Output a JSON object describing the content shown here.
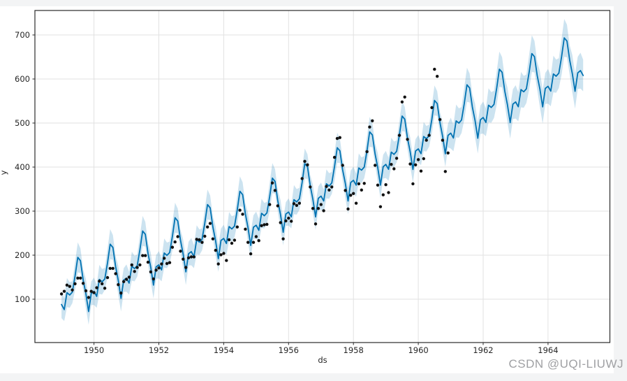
{
  "page": {
    "watermark": "CSDN @UQI-LIUWJ",
    "background_color": "#f3f4f5",
    "figure_background": "#ffffff"
  },
  "chart_data": {
    "type": "line",
    "description": "Prophet-style forecast plot of monthly airline passengers: black observed points, blue forecast line, light-blue uncertainty band",
    "title": "",
    "xlabel": "ds",
    "ylabel": "y",
    "grid": true,
    "legend": "none",
    "xlim": [
      1948.17,
      1965.91
    ],
    "ylim": [
      0,
      755
    ],
    "x_ticks": [
      1950,
      1952,
      1954,
      1956,
      1958,
      1960,
      1962,
      1964
    ],
    "y_ticks": [
      100,
      200,
      300,
      400,
      500,
      600,
      700
    ],
    "colors": {
      "forecast_line": "#0072B2",
      "uncertainty_band": "rgba(0,114,178,0.2)",
      "observed_points": "#111111",
      "gridline": "#e2e2e2",
      "spine": "#2b2b2b",
      "tick_label": "#262626"
    },
    "x_encoding": {
      "unit": "decimal_year",
      "start_year": 1949,
      "start_month": 1,
      "step_months": 1
    },
    "series": [
      {
        "name": "observed",
        "style": "scatter",
        "marker_radius": 2.2,
        "n_points": 144,
        "values": [
          112,
          118,
          132,
          129,
          121,
          135,
          148,
          148,
          136,
          119,
          104,
          118,
          115,
          126,
          141,
          135,
          125,
          149,
          170,
          170,
          158,
          133,
          114,
          140,
          145,
          150,
          178,
          163,
          172,
          178,
          199,
          199,
          184,
          162,
          146,
          166,
          171,
          180,
          193,
          181,
          183,
          218,
          230,
          242,
          209,
          191,
          172,
          194,
          196,
          196,
          236,
          235,
          229,
          243,
          264,
          272,
          237,
          211,
          180,
          201,
          204,
          188,
          235,
          227,
          234,
          264,
          302,
          293,
          259,
          229,
          203,
          229,
          242,
          233,
          267,
          269,
          270,
          315,
          364,
          347,
          312,
          274,
          237,
          278,
          284,
          277,
          317,
          313,
          318,
          374,
          413,
          405,
          355,
          306,
          271,
          306,
          315,
          301,
          356,
          348,
          355,
          422,
          465,
          467,
          404,
          347,
          305,
          336,
          340,
          318,
          362,
          348,
          363,
          435,
          491,
          505,
          404,
          359,
          310,
          337,
          360,
          342,
          406,
          396,
          420,
          472,
          548,
          559,
          463,
          407,
          362,
          405,
          417,
          391,
          419,
          461,
          472,
          535,
          622,
          606,
          508,
          461,
          390,
          432
        ]
      },
      {
        "name": "forecast_yhat",
        "style": "line",
        "n_points": 194,
        "values": [
          88,
          76.5,
          115,
          109.5,
          116,
          152.5,
          195,
          187.5,
          144,
          112.5,
          72,
          113.5,
          118,
          106.5,
          145,
          139.5,
          146,
          182.5,
          225,
          217.5,
          174,
          142.5,
          102,
          143.5,
          148,
          136.5,
          175,
          169.5,
          176,
          212.5,
          255,
          247.5,
          204,
          172.5,
          132,
          173.5,
          178,
          166.5,
          205,
          199.5,
          206,
          242.5,
          285,
          277.5,
          234,
          202.5,
          162,
          203.5,
          208,
          196.5,
          235,
          229.5,
          236,
          272.5,
          315,
          307.5,
          264,
          232.5,
          192,
          233.5,
          238,
          226.5,
          265,
          259.5,
          266,
          302.5,
          345,
          337.5,
          294,
          262.5,
          222,
          263.5,
          268,
          256.5,
          295,
          289.5,
          296,
          332.5,
          375,
          367.5,
          324,
          292.5,
          252,
          293.5,
          298,
          287,
          326,
          321,
          328,
          365,
          408,
          401,
          358,
          327,
          287,
          329,
          334,
          323,
          362,
          357,
          364,
          401,
          444,
          437,
          394,
          363,
          323,
          365,
          370,
          359,
          398,
          393,
          400,
          437,
          480,
          473,
          430,
          399,
          359,
          401,
          406,
          395,
          433.9,
          428.9,
          435.8,
          472.8,
          515.8,
          508.7,
          465.7,
          434.6,
          394.6,
          436.5,
          441.5,
          430.5,
          469.4,
          464.4,
          471.3,
          508.3,
          551.3,
          544.2,
          501.2,
          470.1,
          430.1,
          472,
          477,
          466,
          504.9,
          499.9,
          506.8,
          543.8,
          586.8,
          579.7,
          536.7,
          505.6,
          465.6,
          507.5,
          512.5,
          501.5,
          540.4,
          535.4,
          542.3,
          579.3,
          622.3,
          615.2,
          572.2,
          541.1,
          501.1,
          543,
          548,
          537,
          575.9,
          570.9,
          577.8,
          614.8,
          657.8,
          650.7,
          607.7,
          576.6,
          536.6,
          578.5,
          583.5,
          572.5,
          611.4,
          606.4,
          613.3,
          650.3,
          693.3,
          686.2,
          643.2,
          612.1,
          572.1,
          614,
          619,
          608
        ]
      },
      {
        "name": "uncertainty_band",
        "style": "band",
        "history_points": 144,
        "halfwidth_history": 29,
        "halfwidth_forecast_start": 33,
        "halfwidth_growth_per_month": 0.12,
        "edge_jitter": [
          2,
          -3,
          4,
          0,
          -4,
          3,
          5,
          -1,
          -5,
          4,
          1,
          -2
        ]
      }
    ]
  }
}
